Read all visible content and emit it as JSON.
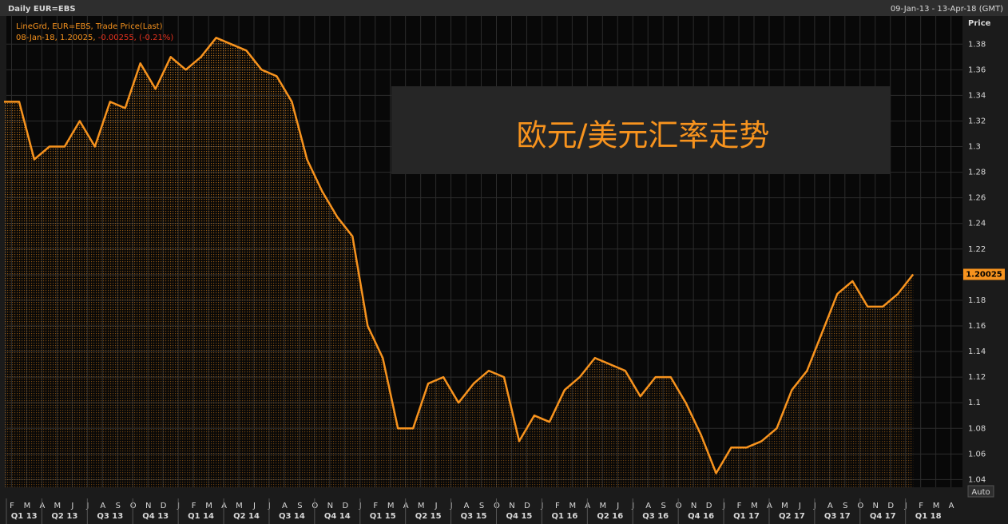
{
  "chart_data": {
    "type": "line",
    "title": "Daily EUR=EBS",
    "date_range": "09-Jan-13 - 13-Apr-18 (GMT)",
    "y_label": "Price",
    "legend_label": "LineGrd, EUR=EBS, Trade Price(Last)",
    "legend_detail": "08-Jan-18, 1.20025, ",
    "legend_change": "-0.00255, (-0.21%)",
    "annotation": "欧元/美元汇率走势",
    "button": "Auto",
    "x": [
      "2013-01",
      "2013-02",
      "2013-03",
      "2013-04",
      "2013-05",
      "2013-06",
      "2013-07",
      "2013-08",
      "2013-09",
      "2013-10",
      "2013-11",
      "2013-12",
      "2014-01",
      "2014-02",
      "2014-03",
      "2014-04",
      "2014-05",
      "2014-06",
      "2014-07",
      "2014-08",
      "2014-09",
      "2014-10",
      "2014-11",
      "2014-12",
      "2015-01",
      "2015-02",
      "2015-03",
      "2015-04",
      "2015-05",
      "2015-06",
      "2015-07",
      "2015-08",
      "2015-09",
      "2015-10",
      "2015-11",
      "2015-12",
      "2016-01",
      "2016-02",
      "2016-03",
      "2016-04",
      "2016-05",
      "2016-06",
      "2016-07",
      "2016-08",
      "2016-09",
      "2016-10",
      "2016-11",
      "2016-12",
      "2017-01",
      "2017-02",
      "2017-03",
      "2017-04",
      "2017-05",
      "2017-06",
      "2017-07",
      "2017-08",
      "2017-09",
      "2017-10",
      "2017-11",
      "2017-12",
      "2018-01"
    ],
    "series": [
      {
        "name": "EUR=EBS",
        "color": "#f7931e",
        "values": [
          1.335,
          1.335,
          1.29,
          1.3,
          1.3,
          1.32,
          1.3,
          1.335,
          1.33,
          1.365,
          1.345,
          1.37,
          1.36,
          1.37,
          1.385,
          1.38,
          1.375,
          1.36,
          1.355,
          1.335,
          1.29,
          1.265,
          1.245,
          1.23,
          1.16,
          1.135,
          1.08,
          1.08,
          1.115,
          1.12,
          1.1,
          1.115,
          1.125,
          1.12,
          1.07,
          1.09,
          1.085,
          1.11,
          1.12,
          1.135,
          1.13,
          1.125,
          1.105,
          1.12,
          1.12,
          1.1,
          1.075,
          1.045,
          1.065,
          1.065,
          1.07,
          1.08,
          1.11,
          1.125,
          1.155,
          1.185,
          1.195,
          1.175,
          1.175,
          1.185,
          1.20025
        ]
      }
    ],
    "month_labels": [
      "F",
      "M",
      "A",
      "M",
      "J",
      "J",
      "A",
      "S",
      "O",
      "N",
      "D",
      "J",
      "F",
      "M",
      "A",
      "M",
      "J",
      "J",
      "A",
      "S",
      "O",
      "N",
      "D",
      "J",
      "F",
      "M",
      "A",
      "M",
      "J",
      "J",
      "A",
      "S",
      "O",
      "N",
      "D",
      "J",
      "F",
      "M",
      "A",
      "M",
      "J",
      "J",
      "A",
      "S",
      "O",
      "N",
      "D",
      "J",
      "F",
      "M",
      "A",
      "M",
      "J",
      "J",
      "A",
      "S",
      "O",
      "N",
      "D",
      "J",
      "F",
      "M",
      "A"
    ],
    "quarter_labels": [
      "Q1 13",
      "Q2 13",
      "Q3 13",
      "Q4 13",
      "Q1 14",
      "Q2 14",
      "Q3 14",
      "Q4 14",
      "Q1 15",
      "Q2 15",
      "Q3 15",
      "Q4 15",
      "Q1 16",
      "Q2 16",
      "Q3 16",
      "Q4 16",
      "Q1 17",
      "Q2 17",
      "Q3 17",
      "Q4 17",
      "Q1 18"
    ],
    "ylim": [
      1.034,
      1.402
    ],
    "yticks": [
      1.04,
      1.06,
      1.08,
      1.1,
      1.12,
      1.14,
      1.16,
      1.18,
      1.2,
      1.22,
      1.24,
      1.26,
      1.28,
      1.3,
      1.32,
      1.34,
      1.36,
      1.38
    ],
    "grid": true
  }
}
